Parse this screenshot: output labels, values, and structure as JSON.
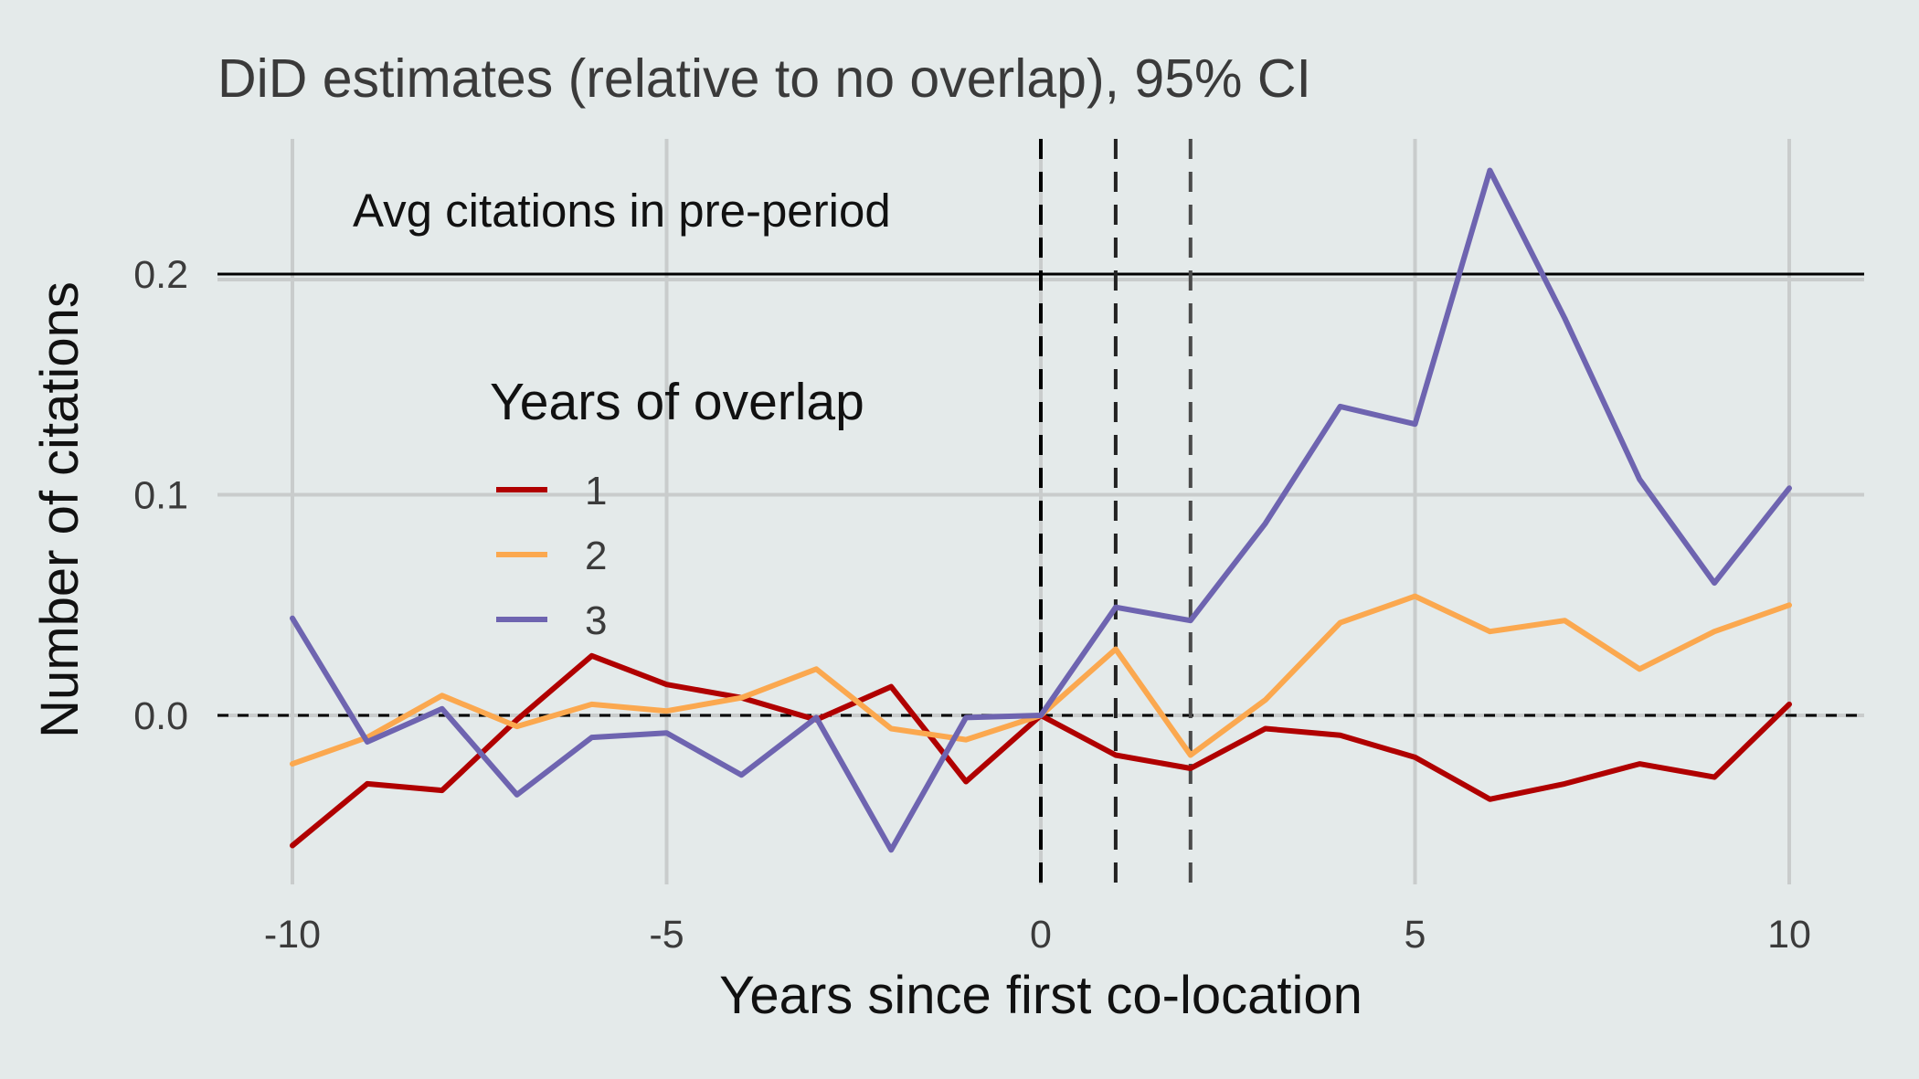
{
  "chart_data": {
    "type": "line",
    "title": "DiD estimates (relative to no overlap), 95% CI",
    "xlabel": "Years since first co-location",
    "ylabel": "Number of citations",
    "xlim": [
      -11,
      11
    ],
    "ylim": [
      -0.075,
      0.26
    ],
    "x_ticks": [
      -10,
      -5,
      0,
      5,
      10
    ],
    "x_tick_labels": [
      "-10",
      "-5",
      "0",
      "5",
      "10"
    ],
    "y_ticks": [
      0.0,
      0.1,
      0.2
    ],
    "y_tick_labels": [
      "0.0",
      "0.1",
      "0.2"
    ],
    "grid": true,
    "x": [
      -10,
      -9,
      -8,
      -7,
      -6,
      -5,
      -4,
      -3,
      -2,
      -1,
      0,
      1,
      2,
      3,
      4,
      5,
      6,
      7,
      8,
      9,
      10
    ],
    "legend": {
      "title": "Years of overlap",
      "placement": "center-left"
    },
    "series": [
      {
        "name": "1",
        "color": "#b00000",
        "values": [
          -0.059,
          -0.031,
          -0.034,
          -0.002,
          0.027,
          0.014,
          0.008,
          -0.002,
          0.013,
          -0.03,
          0.0,
          -0.018,
          -0.024,
          -0.006,
          -0.009,
          -0.019,
          -0.038,
          -0.031,
          -0.022,
          -0.028,
          0.005
        ]
      },
      {
        "name": "2",
        "color": "#fba84f",
        "values": [
          -0.022,
          -0.01,
          0.009,
          -0.005,
          0.005,
          0.002,
          0.008,
          0.021,
          -0.006,
          -0.011,
          0.0,
          0.03,
          -0.018,
          0.007,
          0.042,
          0.054,
          0.038,
          0.043,
          0.021,
          0.038,
          0.05
        ]
      },
      {
        "name": "3",
        "color": "#6e64b0",
        "values": [
          0.044,
          -0.012,
          0.003,
          -0.036,
          -0.01,
          -0.008,
          -0.027,
          -0.001,
          -0.061,
          -0.001,
          0.0,
          0.049,
          0.043,
          0.087,
          0.14,
          0.132,
          0.247,
          0.18,
          0.107,
          0.06,
          0.103
        ]
      }
    ],
    "reference_lines": {
      "horizontal_solid": {
        "y": 0.2,
        "label": "Avg citations in pre-period"
      },
      "horizontal_dashed": {
        "y": 0.0
      },
      "vertical_dashed": [
        0,
        1,
        2
      ]
    }
  }
}
